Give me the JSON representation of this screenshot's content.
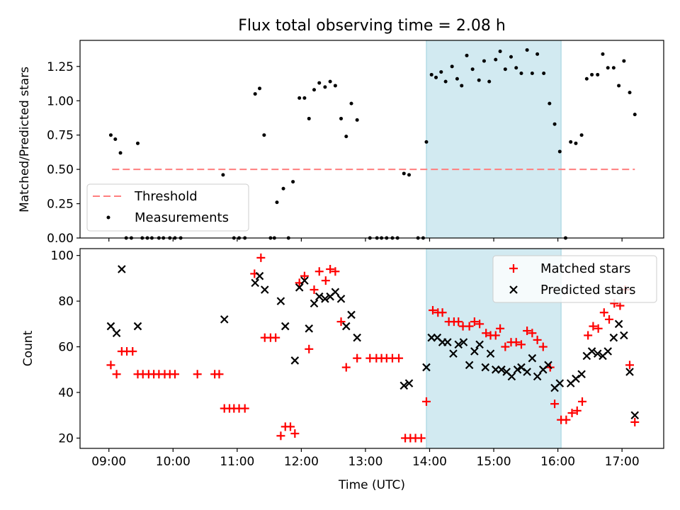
{
  "chart_data": [
    {
      "type": "scatter",
      "title": "Flux total observing time = 2.08 h",
      "xlabel": "",
      "ylabel": "Matched/Predicted stars",
      "xlim": [
        8.55,
        17.65
      ],
      "ylim": [
        0,
        1.44
      ],
      "xticks": [
        9,
        10,
        11,
        12,
        13,
        14,
        15,
        16,
        17
      ],
      "yticks": [
        0.0,
        0.25,
        0.5,
        0.75,
        1.0,
        1.25
      ],
      "ytick_labels": [
        "0.00",
        "0.25",
        "0.50",
        "0.75",
        "1.00",
        "1.25"
      ],
      "shaded_span": [
        13.95,
        16.05
      ],
      "threshold": {
        "name": "Threshold",
        "x": [
          9.05,
          17.2
        ],
        "y": 0.5,
        "color": "#ff7f7f",
        "style": "dashed"
      },
      "legend": {
        "location": "lower-left",
        "entries": [
          "Threshold",
          "Measurements"
        ]
      },
      "series": [
        {
          "name": "Measurements",
          "color": "#000000",
          "marker": "dot",
          "points": [
            [
              9.03,
              0.75
            ],
            [
              9.1,
              0.72
            ],
            [
              9.18,
              0.62
            ],
            [
              9.27,
              0
            ],
            [
              9.35,
              0
            ],
            [
              9.45,
              0.69
            ],
            [
              9.52,
              0
            ],
            [
              9.6,
              0
            ],
            [
              9.67,
              0
            ],
            [
              9.78,
              0
            ],
            [
              9.85,
              0
            ],
            [
              9.95,
              0
            ],
            [
              10.03,
              0
            ],
            [
              10.12,
              0
            ],
            [
              10.78,
              0.46
            ],
            [
              10.95,
              0
            ],
            [
              11.03,
              0
            ],
            [
              11.12,
              0
            ],
            [
              11.28,
              1.05
            ],
            [
              11.35,
              1.09
            ],
            [
              11.42,
              0.75
            ],
            [
              11.52,
              0
            ],
            [
              11.58,
              0
            ],
            [
              11.62,
              0.26
            ],
            [
              11.72,
              0.36
            ],
            [
              11.8,
              0
            ],
            [
              11.87,
              0.41
            ],
            [
              11.97,
              1.02
            ],
            [
              12.05,
              1.02
            ],
            [
              12.12,
              0.87
            ],
            [
              12.2,
              1.08
            ],
            [
              12.28,
              1.13
            ],
            [
              12.37,
              1.1
            ],
            [
              12.45,
              1.14
            ],
            [
              12.53,
              1.11
            ],
            [
              12.62,
              0.87
            ],
            [
              12.7,
              0.74
            ],
            [
              12.78,
              0.98
            ],
            [
              12.87,
              0.86
            ],
            [
              13.07,
              0
            ],
            [
              13.18,
              0
            ],
            [
              13.25,
              0
            ],
            [
              13.33,
              0
            ],
            [
              13.42,
              0
            ],
            [
              13.5,
              0
            ],
            [
              13.6,
              0.47
            ],
            [
              13.68,
              0.46
            ],
            [
              13.82,
              0
            ],
            [
              13.9,
              0
            ],
            [
              13.95,
              0.7
            ],
            [
              14.03,
              1.19
            ],
            [
              14.1,
              1.17
            ],
            [
              14.18,
              1.21
            ],
            [
              14.25,
              1.14
            ],
            [
              14.35,
              1.25
            ],
            [
              14.43,
              1.16
            ],
            [
              14.5,
              1.11
            ],
            [
              14.58,
              1.33
            ],
            [
              14.67,
              1.23
            ],
            [
              14.77,
              1.15
            ],
            [
              14.85,
              1.29
            ],
            [
              14.93,
              1.14
            ],
            [
              15.03,
              1.3
            ],
            [
              15.1,
              1.36
            ],
            [
              15.18,
              1.23
            ],
            [
              15.27,
              1.32
            ],
            [
              15.35,
              1.24
            ],
            [
              15.43,
              1.2
            ],
            [
              15.52,
              1.37
            ],
            [
              15.6,
              1.2
            ],
            [
              15.68,
              1.34
            ],
            [
              15.78,
              1.2
            ],
            [
              15.87,
              0.98
            ],
            [
              15.95,
              0.83
            ],
            [
              16.03,
              0.63
            ],
            [
              16.12,
              0
            ],
            [
              16.2,
              0.7
            ],
            [
              16.28,
              0.69
            ],
            [
              16.37,
              0.75
            ],
            [
              16.45,
              1.16
            ],
            [
              16.53,
              1.19
            ],
            [
              16.62,
              1.19
            ],
            [
              16.7,
              1.34
            ],
            [
              16.78,
              1.24
            ],
            [
              16.87,
              1.24
            ],
            [
              16.95,
              1.11
            ],
            [
              17.03,
              1.29
            ],
            [
              17.12,
              1.06
            ],
            [
              17.2,
              0.9
            ]
          ]
        }
      ]
    },
    {
      "type": "scatter",
      "title": "",
      "xlabel": "Time (UTC)",
      "ylabel": "Count",
      "xlim": [
        8.55,
        17.65
      ],
      "ylim": [
        15.5,
        103
      ],
      "xticks": [
        9,
        10,
        11,
        12,
        13,
        14,
        15,
        16,
        17
      ],
      "xtick_labels": [
        "09:00",
        "10:00",
        "11:00",
        "12:00",
        "13:00",
        "14:00",
        "15:00",
        "16:00",
        "17:00"
      ],
      "yticks": [
        20,
        40,
        60,
        80,
        100
      ],
      "ytick_labels": [
        "20",
        "40",
        "60",
        "80",
        "100"
      ],
      "shaded_span": [
        13.95,
        16.05
      ],
      "legend": {
        "location": "upper-right",
        "entries": [
          "Matched stars",
          "Predicted stars"
        ]
      },
      "series": [
        {
          "name": "Matched stars",
          "color": "#ff0000",
          "marker": "plus",
          "points": [
            [
              9.03,
              52
            ],
            [
              9.12,
              48
            ],
            [
              9.2,
              58
            ],
            [
              9.28,
              58
            ],
            [
              9.37,
              58
            ],
            [
              9.45,
              48
            ],
            [
              9.53,
              48
            ],
            [
              9.62,
              48
            ],
            [
              9.7,
              48
            ],
            [
              9.78,
              48
            ],
            [
              9.87,
              48
            ],
            [
              9.95,
              48
            ],
            [
              10.03,
              48
            ],
            [
              10.38,
              48
            ],
            [
              10.65,
              48
            ],
            [
              10.72,
              48
            ],
            [
              10.8,
              33
            ],
            [
              10.88,
              33
            ],
            [
              10.95,
              33
            ],
            [
              11.03,
              33
            ],
            [
              11.12,
              33
            ],
            [
              11.27,
              92
            ],
            [
              11.37,
              99
            ],
            [
              11.43,
              64
            ],
            [
              11.52,
              64
            ],
            [
              11.6,
              64
            ],
            [
              11.68,
              21
            ],
            [
              11.75,
              25
            ],
            [
              11.83,
              25
            ],
            [
              11.9,
              22
            ],
            [
              11.97,
              88
            ],
            [
              12.05,
              91
            ],
            [
              12.12,
              59
            ],
            [
              12.2,
              85
            ],
            [
              12.28,
              93
            ],
            [
              12.38,
              89
            ],
            [
              12.45,
              94
            ],
            [
              12.53,
              93
            ],
            [
              12.62,
              71
            ],
            [
              12.7,
              51
            ],
            [
              12.87,
              55
            ],
            [
              13.07,
              55
            ],
            [
              13.17,
              55
            ],
            [
              13.25,
              55
            ],
            [
              13.33,
              55
            ],
            [
              13.42,
              55
            ],
            [
              13.52,
              55
            ],
            [
              13.62,
              20
            ],
            [
              13.7,
              20
            ],
            [
              13.78,
              20
            ],
            [
              13.87,
              20
            ],
            [
              13.95,
              36
            ],
            [
              14.05,
              76
            ],
            [
              14.13,
              75
            ],
            [
              14.2,
              75
            ],
            [
              14.3,
              71
            ],
            [
              14.38,
              71
            ],
            [
              14.45,
              71
            ],
            [
              14.52,
              69
            ],
            [
              14.62,
              69
            ],
            [
              14.7,
              71
            ],
            [
              14.78,
              70
            ],
            [
              14.88,
              66
            ],
            [
              14.95,
              65
            ],
            [
              15.03,
              65
            ],
            [
              15.1,
              68
            ],
            [
              15.18,
              60
            ],
            [
              15.27,
              62
            ],
            [
              15.35,
              62
            ],
            [
              15.43,
              61
            ],
            [
              15.52,
              67
            ],
            [
              15.6,
              66
            ],
            [
              15.68,
              63
            ],
            [
              15.77,
              60
            ],
            [
              15.88,
              51
            ],
            [
              15.95,
              35
            ],
            [
              16.05,
              28
            ],
            [
              16.13,
              28
            ],
            [
              16.22,
              31
            ],
            [
              16.3,
              32
            ],
            [
              16.38,
              36
            ],
            [
              16.47,
              65
            ],
            [
              16.55,
              69
            ],
            [
              16.63,
              68
            ],
            [
              16.72,
              75
            ],
            [
              16.8,
              72
            ],
            [
              16.88,
              79
            ],
            [
              16.97,
              78
            ],
            [
              17.05,
              85
            ],
            [
              17.12,
              52
            ],
            [
              17.2,
              27
            ]
          ]
        },
        {
          "name": "Predicted stars",
          "color": "#000000",
          "marker": "x",
          "points": [
            [
              9.03,
              69
            ],
            [
              9.12,
              66
            ],
            [
              9.2,
              94
            ],
            [
              9.45,
              69
            ],
            [
              10.8,
              72
            ],
            [
              11.28,
              88
            ],
            [
              11.35,
              91
            ],
            [
              11.43,
              85
            ],
            [
              11.68,
              80
            ],
            [
              11.75,
              69
            ],
            [
              11.9,
              54
            ],
            [
              11.97,
              86
            ],
            [
              12.05,
              89
            ],
            [
              12.12,
              68
            ],
            [
              12.2,
              79
            ],
            [
              12.28,
              82
            ],
            [
              12.37,
              81
            ],
            [
              12.45,
              82
            ],
            [
              12.53,
              84
            ],
            [
              12.62,
              81
            ],
            [
              12.7,
              69
            ],
            [
              12.78,
              74
            ],
            [
              12.87,
              64
            ],
            [
              13.6,
              43
            ],
            [
              13.68,
              44
            ],
            [
              13.95,
              51
            ],
            [
              14.03,
              64
            ],
            [
              14.12,
              64
            ],
            [
              14.2,
              62
            ],
            [
              14.28,
              62
            ],
            [
              14.37,
              57
            ],
            [
              14.45,
              61
            ],
            [
              14.53,
              62
            ],
            [
              14.62,
              52
            ],
            [
              14.7,
              58
            ],
            [
              14.78,
              61
            ],
            [
              14.87,
              51
            ],
            [
              14.95,
              57
            ],
            [
              15.03,
              50
            ],
            [
              15.12,
              50
            ],
            [
              15.2,
              49
            ],
            [
              15.28,
              47
            ],
            [
              15.37,
              50
            ],
            [
              15.43,
              51
            ],
            [
              15.52,
              49
            ],
            [
              15.6,
              55
            ],
            [
              15.68,
              47
            ],
            [
              15.77,
              50
            ],
            [
              15.85,
              52
            ],
            [
              15.95,
              42
            ],
            [
              16.03,
              44
            ],
            [
              16.2,
              44
            ],
            [
              16.28,
              46
            ],
            [
              16.37,
              48
            ],
            [
              16.45,
              56
            ],
            [
              16.53,
              58
            ],
            [
              16.62,
              57
            ],
            [
              16.7,
              56
            ],
            [
              16.78,
              58
            ],
            [
              16.87,
              64
            ],
            [
              16.95,
              70
            ],
            [
              17.03,
              65
            ],
            [
              17.12,
              49
            ],
            [
              17.2,
              30
            ]
          ]
        }
      ]
    }
  ]
}
